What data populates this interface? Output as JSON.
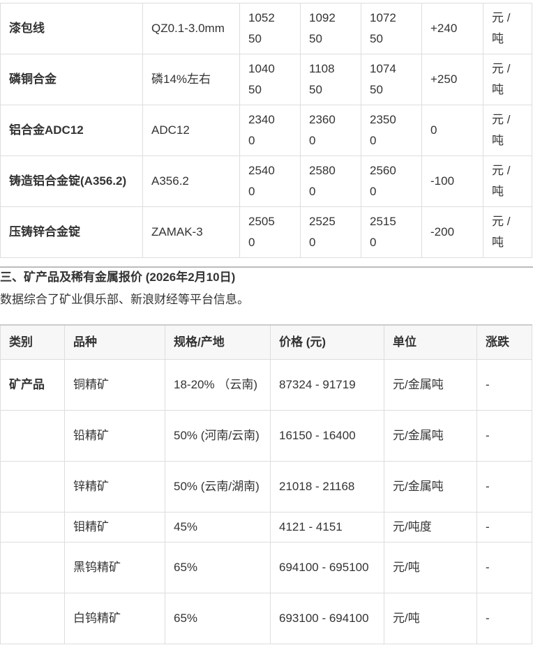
{
  "alloy_table": {
    "rows": [
      {
        "name": "漆包线",
        "spec": "QZ0.1-3.0mm",
        "low": "105250",
        "high": "109250",
        "avg": "107250",
        "change": "+240",
        "unit": "元 / 吨"
      },
      {
        "name": "磷铜合金",
        "spec": "磷14%左右",
        "low": "104050",
        "high": "110850",
        "avg": "107450",
        "change": "+250",
        "unit": "元 / 吨"
      },
      {
        "name": "铝合金ADC12",
        "spec": "ADC12",
        "low": "23400",
        "high": "23600",
        "avg": "23500",
        "change": "0",
        "unit": "元 / 吨"
      },
      {
        "name": "铸造铝合金锭(A356.2)",
        "spec": "A356.2",
        "low": "25400",
        "high": "25800",
        "avg": "25600",
        "change": "-100",
        "unit": "元 / 吨"
      },
      {
        "name": "压铸锌合金锭",
        "spec": "ZAMAK-3",
        "low": "25050",
        "high": "25250",
        "avg": "25150",
        "change": "-200",
        "unit": "元 / 吨"
      }
    ]
  },
  "section3": {
    "heading": "三、矿产品及稀有金属报价 (2026年2月10日)",
    "note": "数据综合了矿业俱乐部、新浪财经等平台信息。"
  },
  "ore_table": {
    "headers": [
      "类别",
      "品种",
      "规格/产地",
      "价格 (元)",
      "单位",
      "涨跌"
    ],
    "rows": [
      {
        "category": "矿产品",
        "variety": "铜精矿",
        "spec": "18-20% （云南)",
        "price": "87324 - 91719",
        "unit": "元/金属吨",
        "change": "-"
      },
      {
        "category": "",
        "variety": "铅精矿",
        "spec": "50% (河南/云南)",
        "price": "16150 - 16400",
        "unit": "元/金属吨",
        "change": "-"
      },
      {
        "category": "",
        "variety": "锌精矿",
        "spec": "50% (云南/湖南)",
        "price": "21018 - 21168",
        "unit": "元/金属吨",
        "change": "-"
      },
      {
        "category": "",
        "variety": "钼精矿",
        "spec": "45%",
        "price": "4121 - 4151",
        "unit": "元/吨度",
        "change": "-"
      },
      {
        "category": "",
        "variety": "黑钨精矿",
        "spec": "65%",
        "price": "694100 - 695100",
        "unit": "元/吨",
        "change": "-"
      },
      {
        "category": "",
        "variety": "白钨精矿",
        "spec": "65%",
        "price": "693100 - 694100",
        "unit": "元/吨",
        "change": "-"
      }
    ]
  }
}
